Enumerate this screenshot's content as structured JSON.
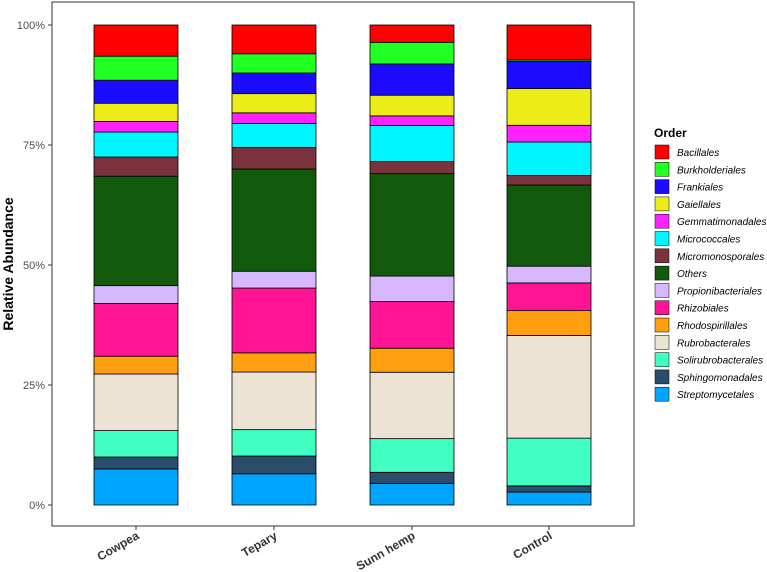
{
  "chart_data": {
    "type": "bar",
    "stacked": true,
    "categories": [
      "Cowpea",
      "Tepary",
      "Sunn hemp",
      "Control"
    ],
    "ylabel": "Relative Abundance",
    "xlabel": "",
    "ylim": [
      0,
      1
    ],
    "y_tick_labels": [
      "0%",
      "25%",
      "50%",
      "75%",
      "100%"
    ],
    "y_ticks": [
      0,
      0.25,
      0.5,
      0.75,
      1.0
    ],
    "legend_title": "Order",
    "legend_position": "right",
    "grid": false,
    "series": [
      {
        "name": "Streptomycetales",
        "color": "#00A5FF",
        "values": [
          0.075,
          0.065,
          0.045,
          0.027
        ]
      },
      {
        "name": "Sphingomonadales",
        "color": "#2A4D6B",
        "values": [
          0.025,
          0.037,
          0.023,
          0.013
        ]
      },
      {
        "name": "Solirubrobacterales",
        "color": "#40FFC0",
        "values": [
          0.055,
          0.055,
          0.07,
          0.1
        ]
      },
      {
        "name": "Rubrobacterales",
        "color": "#EDE3D5",
        "values": [
          0.118,
          0.12,
          0.138,
          0.215
        ]
      },
      {
        "name": "Rhodospirillales",
        "color": "#FF9F10",
        "values": [
          0.037,
          0.04,
          0.05,
          0.052
        ]
      },
      {
        "name": "Rhizobiales",
        "color": "#FF1493",
        "values": [
          0.11,
          0.135,
          0.097,
          0.058
        ]
      },
      {
        "name": "Propionibacteriales",
        "color": "#D7B8FF",
        "values": [
          0.037,
          0.035,
          0.053,
          0.035
        ]
      },
      {
        "name": "Others",
        "color": "#115A0B",
        "values": [
          0.228,
          0.213,
          0.213,
          0.17
        ]
      },
      {
        "name": "Micromonosporales",
        "color": "#7A323D",
        "values": [
          0.04,
          0.045,
          0.025,
          0.02
        ]
      },
      {
        "name": "Micrococcales",
        "color": "#00F5FF",
        "values": [
          0.052,
          0.05,
          0.075,
          0.07
        ]
      },
      {
        "name": "Gemmatimonadales",
        "color": "#FF22FF",
        "values": [
          0.022,
          0.022,
          0.02,
          0.035
        ]
      },
      {
        "name": "Gaiellales",
        "color": "#ECEC18",
        "values": [
          0.038,
          0.04,
          0.043,
          0.077
        ]
      },
      {
        "name": "Frankiales",
        "color": "#1B0BFF",
        "values": [
          0.048,
          0.043,
          0.065,
          0.057
        ]
      },
      {
        "name": "Burkholderiales",
        "color": "#22FF22",
        "values": [
          0.05,
          0.04,
          0.045,
          0.003
        ]
      },
      {
        "name": "Bacillales",
        "color": "#FF0000",
        "values": [
          0.065,
          0.06,
          0.036,
          0.073
        ]
      }
    ]
  }
}
